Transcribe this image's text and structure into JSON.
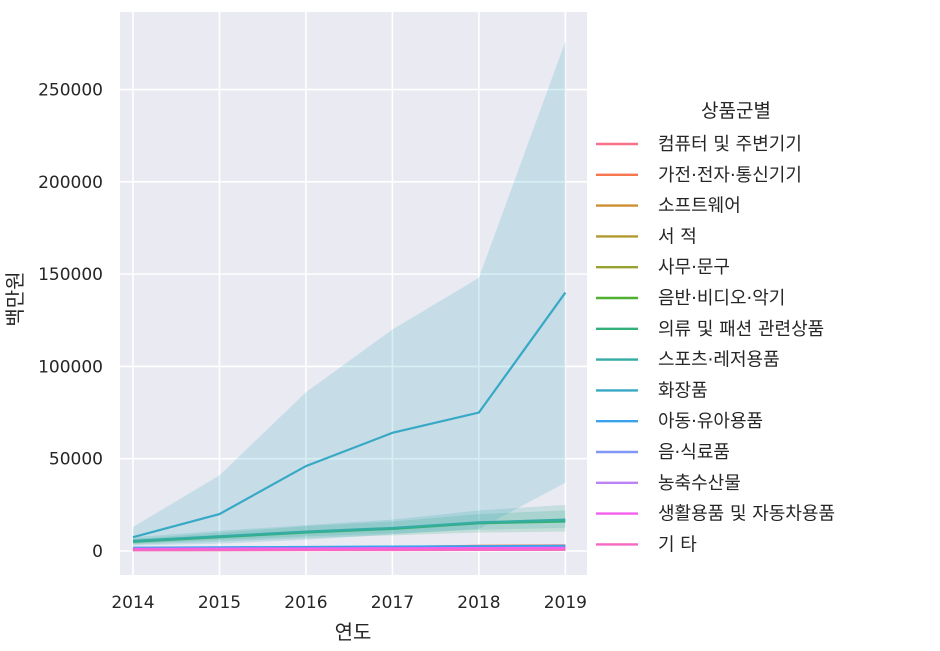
{
  "chart_data": {
    "type": "line",
    "xlabel": "연도",
    "ylabel": "백만원",
    "x": [
      2014,
      2015,
      2016,
      2017,
      2018,
      2019
    ],
    "xlim": [
      2013.85,
      2019.25
    ],
    "ylim": [
      -13000,
      292000
    ],
    "yticks": [
      0,
      50000,
      100000,
      150000,
      200000,
      250000
    ],
    "xticks": [
      2014,
      2015,
      2016,
      2017,
      2018,
      2019
    ],
    "grid": true,
    "background": "#eaeaf2",
    "legend_title": "상품군별",
    "legend_position": "right",
    "series": [
      {
        "name": "컴퓨터 및 주변기기",
        "color": "#f77189",
        "values": [
          1500,
          1600,
          1700,
          1800,
          2000,
          2100
        ],
        "ci_lower": [
          1000,
          1100,
          1200,
          1300,
          1500,
          1600
        ],
        "ci_upper": [
          2000,
          2100,
          2200,
          2300,
          2500,
          2600
        ]
      },
      {
        "name": "가전·전자·통신기기",
        "color": "#f7754f",
        "values": [
          1500,
          1700,
          1900,
          2100,
          2800,
          3000
        ],
        "ci_lower": [
          1000,
          1200,
          1400,
          1600,
          2200,
          2400
        ],
        "ci_upper": [
          2000,
          2200,
          2400,
          2600,
          3400,
          3600
        ]
      },
      {
        "name": "소프트웨어",
        "color": "#ce8f31",
        "values": [
          1000,
          1100,
          1200,
          1300,
          1500,
          1600
        ],
        "ci_lower": [
          600,
          700,
          800,
          900,
          1000,
          1100
        ],
        "ci_upper": [
          1400,
          1500,
          1600,
          1700,
          2000,
          2100
        ]
      },
      {
        "name": "서 적",
        "color": "#b19832",
        "values": [
          1200,
          1300,
          1400,
          1500,
          1700,
          1800
        ],
        "ci_lower": [
          800,
          900,
          1000,
          1100,
          1200,
          1300
        ],
        "ci_upper": [
          1600,
          1700,
          1800,
          1900,
          2200,
          2300
        ]
      },
      {
        "name": "사무·문구",
        "color": "#96a331",
        "values": [
          800,
          900,
          1000,
          1100,
          1300,
          1400
        ],
        "ci_lower": [
          500,
          600,
          700,
          800,
          900,
          1000
        ],
        "ci_upper": [
          1100,
          1200,
          1300,
          1400,
          1700,
          1800
        ]
      },
      {
        "name": "음반·비디오·악기",
        "color": "#4fb031",
        "values": [
          500,
          550,
          600,
          650,
          700,
          750
        ],
        "ci_lower": [
          300,
          350,
          400,
          450,
          500,
          550
        ],
        "ci_upper": [
          700,
          750,
          800,
          850,
          900,
          950
        ]
      },
      {
        "name": "의류 및 패션 관련상품",
        "color": "#33b07a",
        "values": [
          5000,
          7500,
          10000,
          12000,
          15000,
          16000
        ],
        "ci_lower": [
          3500,
          5000,
          7000,
          8500,
          10000,
          10500
        ],
        "ci_upper": [
          6500,
          10000,
          13500,
          16000,
          20000,
          22000
        ]
      },
      {
        "name": "스포츠·레저용품",
        "color": "#35aca4",
        "values": [
          5500,
          8000,
          10500,
          12500,
          15500,
          17000
        ],
        "ci_lower": [
          4000,
          6000,
          8000,
          9500,
          11500,
          12500
        ],
        "ci_upper": [
          7500,
          11000,
          14000,
          17000,
          22000,
          25000
        ]
      },
      {
        "name": "화장품",
        "color": "#38a9c5",
        "values": [
          7500,
          20000,
          46000,
          64000,
          75000,
          140000
        ],
        "ci_lower": [
          3000,
          4000,
          6000,
          9000,
          12000,
          37000
        ],
        "ci_upper": [
          13000,
          41000,
          86000,
          120000,
          148000,
          276000
        ]
      },
      {
        "name": "아동·유아용품",
        "color": "#3ba3ec",
        "values": [
          1800,
          2000,
          2200,
          2400,
          2600,
          2800
        ],
        "ci_lower": [
          1300,
          1500,
          1700,
          1900,
          2100,
          2300
        ],
        "ci_upper": [
          2300,
          2500,
          2700,
          2900,
          3100,
          3300
        ]
      },
      {
        "name": "음·식료품",
        "color": "#8197f5",
        "values": [
          1000,
          1100,
          1200,
          1300,
          1400,
          1500
        ],
        "ci_lower": [
          700,
          800,
          900,
          1000,
          1100,
          1200
        ],
        "ci_upper": [
          1300,
          1400,
          1500,
          1600,
          1700,
          1800
        ]
      },
      {
        "name": "농축수산물",
        "color": "#bb83f4",
        "values": [
          600,
          650,
          700,
          750,
          800,
          850
        ],
        "ci_lower": [
          400,
          450,
          500,
          550,
          600,
          650
        ],
        "ci_upper": [
          800,
          850,
          900,
          950,
          1000,
          1050
        ]
      },
      {
        "name": "생활용품 및 자동차용품",
        "color": "#f45fed",
        "values": [
          1200,
          1300,
          1400,
          1500,
          1600,
          1700
        ],
        "ci_lower": [
          900,
          1000,
          1100,
          1200,
          1300,
          1400
        ],
        "ci_upper": [
          1500,
          1600,
          1700,
          1800,
          1900,
          2000
        ]
      },
      {
        "name": "기 타",
        "color": "#f668c2",
        "values": [
          400,
          450,
          500,
          550,
          600,
          650
        ],
        "ci_lower": [
          200,
          250,
          300,
          350,
          400,
          450
        ],
        "ci_upper": [
          600,
          650,
          700,
          750,
          800,
          850
        ]
      }
    ]
  }
}
